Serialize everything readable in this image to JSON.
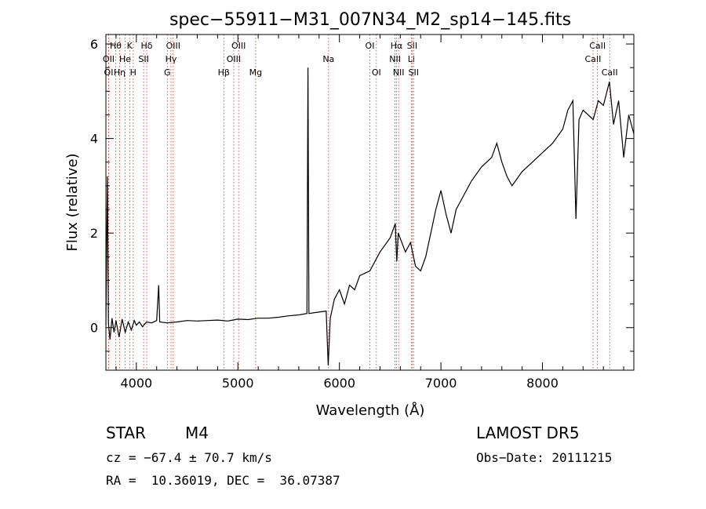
{
  "chart_data": {
    "type": "line",
    "title": "spec−55911−M31_007N34_M2_sp14−145.fits",
    "xlabel": "Wavelength (Å)",
    "ylabel": "Flux (relative)",
    "xlim": [
      3700,
      8900
    ],
    "ylim": [
      -0.9,
      6.2
    ],
    "xticks": [
      4000,
      5000,
      6000,
      7000,
      8000
    ],
    "yticks": [
      0,
      2,
      4,
      6
    ],
    "grid": false,
    "series": [
      {
        "values_xy": [
          [
            3700,
            0.05
          ],
          [
            3715,
            3.2
          ],
          [
            3725,
            0.1
          ],
          [
            3740,
            -0.25
          ],
          [
            3760,
            0.2
          ],
          [
            3780,
            -0.1
          ],
          [
            3800,
            0.15
          ],
          [
            3830,
            -0.2
          ],
          [
            3860,
            0.18
          ],
          [
            3890,
            -0.1
          ],
          [
            3920,
            0.12
          ],
          [
            3950,
            -0.05
          ],
          [
            3980,
            0.15
          ],
          [
            4000,
            0.05
          ],
          [
            4030,
            0.12
          ],
          [
            4060,
            0.02
          ],
          [
            4100,
            0.12
          ],
          [
            4150,
            0.1
          ],
          [
            4200,
            0.15
          ],
          [
            4220,
            0.9
          ],
          [
            4230,
            0.12
          ],
          [
            4300,
            0.1
          ],
          [
            4400,
            0.12
          ],
          [
            4500,
            0.15
          ],
          [
            4600,
            0.14
          ],
          [
            4700,
            0.15
          ],
          [
            4800,
            0.16
          ],
          [
            4900,
            0.14
          ],
          [
            5000,
            0.18
          ],
          [
            5100,
            0.17
          ],
          [
            5200,
            0.2
          ],
          [
            5300,
            0.2
          ],
          [
            5400,
            0.22
          ],
          [
            5500,
            0.25
          ],
          [
            5600,
            0.27
          ],
          [
            5680,
            0.3
          ],
          [
            5690,
            5.5
          ],
          [
            5700,
            0.3
          ],
          [
            5800,
            0.33
          ],
          [
            5870,
            0.35
          ],
          [
            5890,
            -0.8
          ],
          [
            5910,
            0.2
          ],
          [
            5950,
            0.6
          ],
          [
            6000,
            0.8
          ],
          [
            6050,
            0.5
          ],
          [
            6100,
            0.9
          ],
          [
            6150,
            0.8
          ],
          [
            6200,
            1.1
          ],
          [
            6300,
            1.2
          ],
          [
            6400,
            1.6
          ],
          [
            6500,
            1.9
          ],
          [
            6550,
            2.2
          ],
          [
            6565,
            1.4
          ],
          [
            6580,
            2.0
          ],
          [
            6650,
            1.6
          ],
          [
            6700,
            1.8
          ],
          [
            6750,
            1.3
          ],
          [
            6800,
            1.2
          ],
          [
            6850,
            1.5
          ],
          [
            6900,
            2.0
          ],
          [
            6950,
            2.5
          ],
          [
            7000,
            2.9
          ],
          [
            7050,
            2.4
          ],
          [
            7100,
            2.0
          ],
          [
            7150,
            2.5
          ],
          [
            7200,
            2.7
          ],
          [
            7300,
            3.1
          ],
          [
            7400,
            3.4
          ],
          [
            7500,
            3.6
          ],
          [
            7550,
            3.9
          ],
          [
            7600,
            3.5
          ],
          [
            7650,
            3.2
          ],
          [
            7700,
            3.0
          ],
          [
            7800,
            3.3
          ],
          [
            7900,
            3.5
          ],
          [
            8000,
            3.7
          ],
          [
            8100,
            3.9
          ],
          [
            8200,
            4.2
          ],
          [
            8250,
            4.6
          ],
          [
            8300,
            4.8
          ],
          [
            8330,
            2.3
          ],
          [
            8360,
            4.4
          ],
          [
            8400,
            4.6
          ],
          [
            8450,
            4.5
          ],
          [
            8500,
            4.4
          ],
          [
            8550,
            4.8
          ],
          [
            8600,
            4.7
          ],
          [
            8660,
            5.2
          ],
          [
            8700,
            4.3
          ],
          [
            8750,
            4.8
          ],
          [
            8800,
            3.6
          ],
          [
            8850,
            4.5
          ],
          [
            8900,
            4.1
          ]
        ]
      }
    ],
    "lines": [
      {
        "label": "Hθ",
        "wl": 3797,
        "row": 1
      },
      {
        "label": "OII",
        "wl": 3727,
        "row": 2
      },
      {
        "label": "OI",
        "wl": 3727,
        "row": 3
      },
      {
        "label": "Hη",
        "wl": 3835,
        "row": 3
      },
      {
        "label": "K",
        "wl": 3934,
        "row": 1
      },
      {
        "label": "He",
        "wl": 3889,
        "row": 2
      },
      {
        "label": "H",
        "wl": 3969,
        "row": 3
      },
      {
        "label": "Hδ",
        "wl": 4102,
        "row": 1
      },
      {
        "label": "SII",
        "wl": 4072,
        "row": 2
      },
      {
        "label": "OIII",
        "wl": 4363,
        "row": 1
      },
      {
        "label": "Hγ",
        "wl": 4341,
        "row": 2
      },
      {
        "label": "G",
        "wl": 4305,
        "row": 3
      },
      {
        "label": "Hβ",
        "wl": 4861,
        "row": 3
      },
      {
        "label": "OIII",
        "wl": 5007,
        "row": 1
      },
      {
        "label": "OIII",
        "wl": 4959,
        "row": 2
      },
      {
        "label": "Mg",
        "wl": 5175,
        "row": 3
      },
      {
        "label": "Na",
        "wl": 5893,
        "row": 2
      },
      {
        "label": "OI",
        "wl": 6300,
        "row": 1
      },
      {
        "label": "OI",
        "wl": 6364,
        "row": 3
      },
      {
        "label": "Hα",
        "wl": 6563,
        "row": 1
      },
      {
        "label": "NII",
        "wl": 6548,
        "row": 2
      },
      {
        "label": "NII",
        "wl": 6583,
        "row": 3
      },
      {
        "label": "SII",
        "wl": 6716,
        "row": 1
      },
      {
        "label": "Li",
        "wl": 6708,
        "row": 2
      },
      {
        "label": "SII",
        "wl": 6731,
        "row": 3
      },
      {
        "label": "CaII",
        "wl": 8542,
        "row": 1
      },
      {
        "label": "CaII",
        "wl": 8498,
        "row": 2
      },
      {
        "label": "CaII",
        "wl": 8662,
        "row": 3
      }
    ]
  },
  "info": {
    "class": "STAR",
    "subclass": "M4",
    "survey": "LAMOST DR5",
    "cz": "cz = −67.4 ± 70.7 km/s",
    "obs_date": "Obs−Date: 20111215",
    "radec": "RA =  10.36019, DEC =  36.07387"
  },
  "colors": {
    "axis": "#000000",
    "spectrum": "#000000",
    "line_marker": "#c0392b"
  }
}
